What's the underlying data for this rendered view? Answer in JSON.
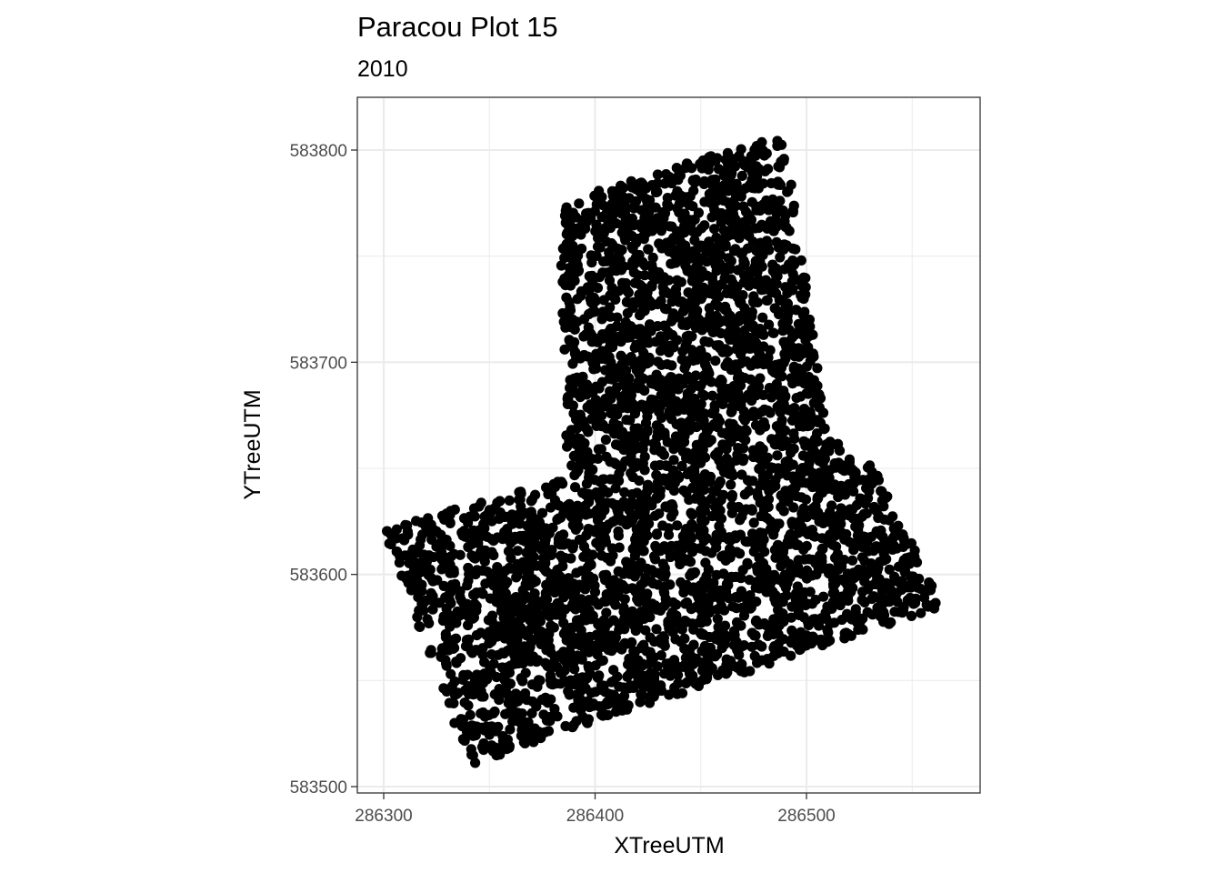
{
  "chart_data": {
    "type": "scatter",
    "title": "Paracou Plot 15",
    "subtitle": "2010",
    "xlabel": "XTreeUTM",
    "ylabel": "YTreeUTM",
    "xlim": [
      286300,
      286570
    ],
    "ylim": [
      583500,
      583810
    ],
    "x_ticks": [
      286300,
      286400,
      286500
    ],
    "y_ticks": [
      583500,
      583600,
      583700,
      583800
    ],
    "x_tick_labels": [
      "286300",
      "286400",
      "286500"
    ],
    "y_tick_labels": [
      "583500",
      "583600",
      "583700",
      "583800"
    ],
    "grid": true,
    "point_color": "#000000",
    "point_count_estimate": 4000,
    "region_outline_corners_note": [
      [
        286300,
        583622
      ],
      [
        286340,
        583510
      ],
      [
        286565,
        583585
      ],
      [
        286532,
        583650
      ],
      [
        286510,
        583665
      ],
      [
        286490,
        583808
      ],
      [
        286383,
        583775
      ],
      [
        286387,
        583645
      ]
    ]
  }
}
